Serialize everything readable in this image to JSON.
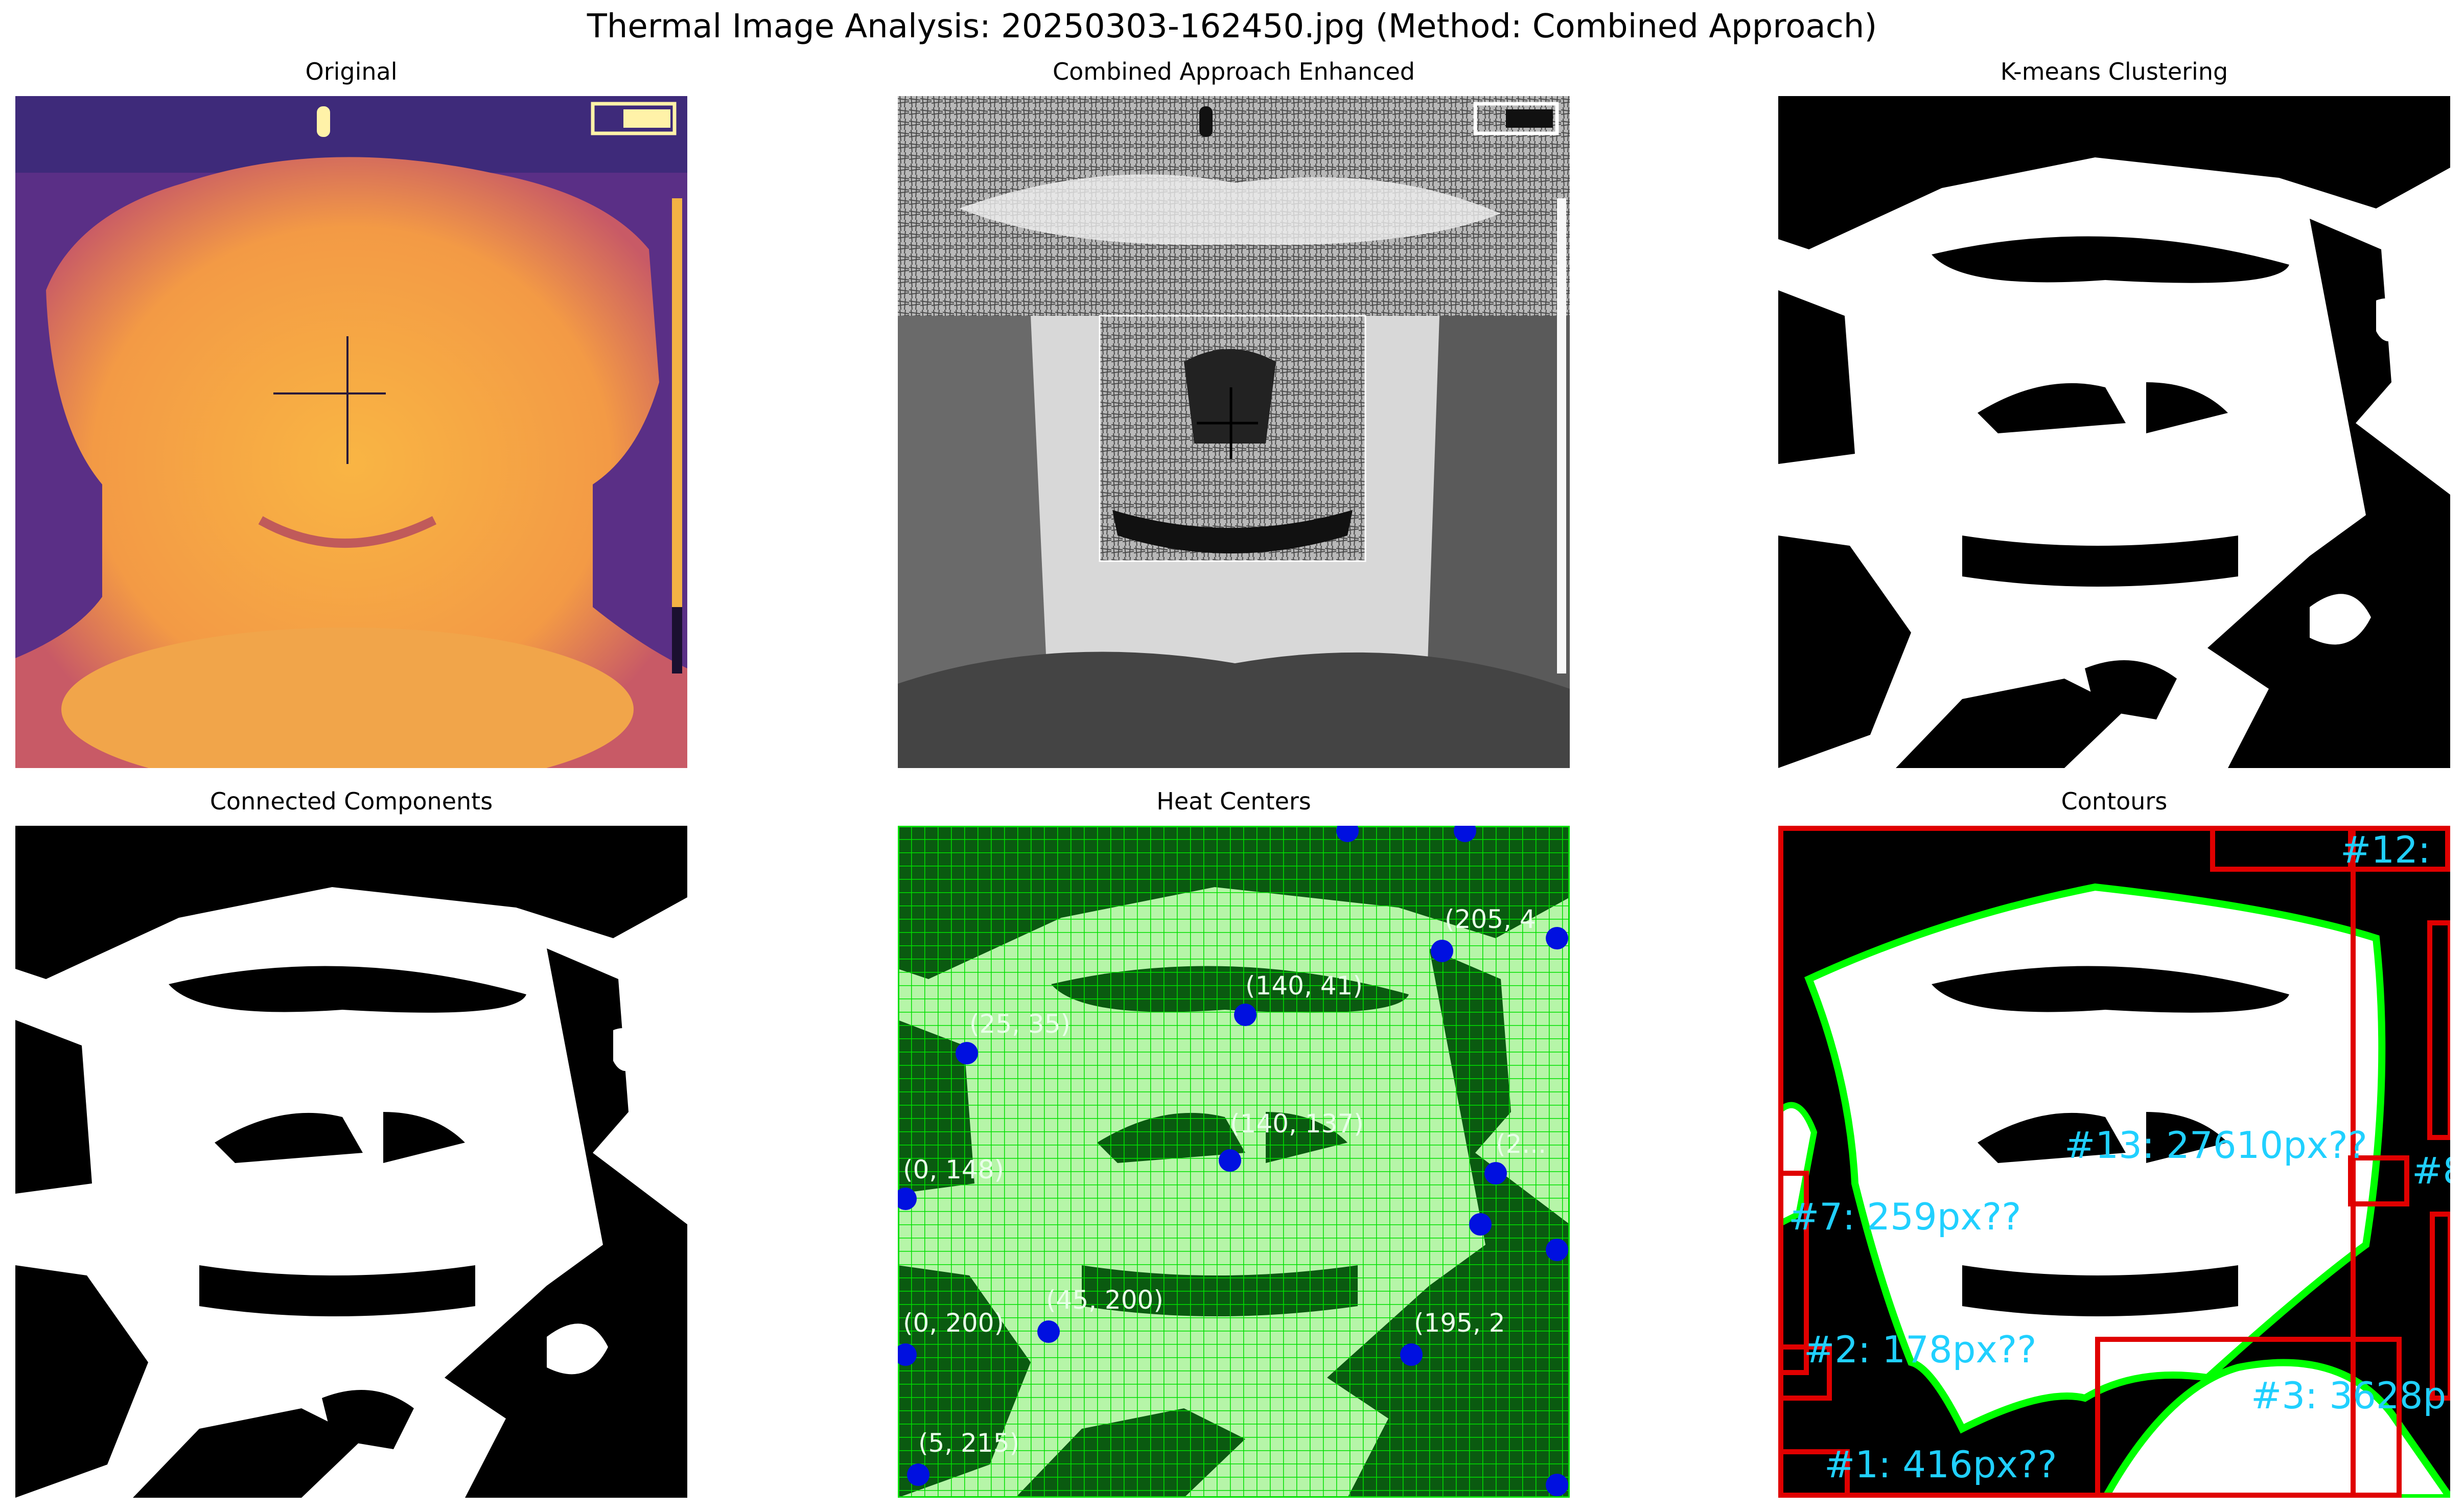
{
  "figure": {
    "title": "Thermal Image Analysis: 20250303-162450.jpg (Method: Combined Approach)"
  },
  "panels": [
    {
      "title": "Original"
    },
    {
      "title": "Combined Approach Enhanced"
    },
    {
      "title": "K-means Clustering"
    },
    {
      "title": "Connected Components"
    },
    {
      "title": "Heat Centers"
    },
    {
      "title": "Contours"
    }
  ],
  "heat_centers": {
    "labels": [
      "(205, 4",
      "(140, 41)",
      "(25, 35)",
      "(140, 137)",
      "(0, 148)",
      "(2...",
      "(0, 200)",
      "(45, 200)",
      "(195, 2",
      "(5, 215)"
    ]
  },
  "contours": {
    "labels": [
      "#12:",
      "#13: 27610px??",
      "#8",
      "#7: 259px??",
      "#2: 178px??",
      "#3: 3628p",
      "#1: 416px??"
    ]
  },
  "colors": {
    "thermal_bg": "#5a2f86",
    "thermal_face": "#f6b042",
    "mask_white": "#ffffff",
    "mask_black": "#000000",
    "grid_green": "#00e000",
    "dark_green": "#0a5a10",
    "light_green": "#b6f5a8",
    "center_blue": "#0010e0",
    "contour_green": "#00ff00",
    "box_red": "#e00000",
    "label_cyan": "#20d0ff"
  }
}
